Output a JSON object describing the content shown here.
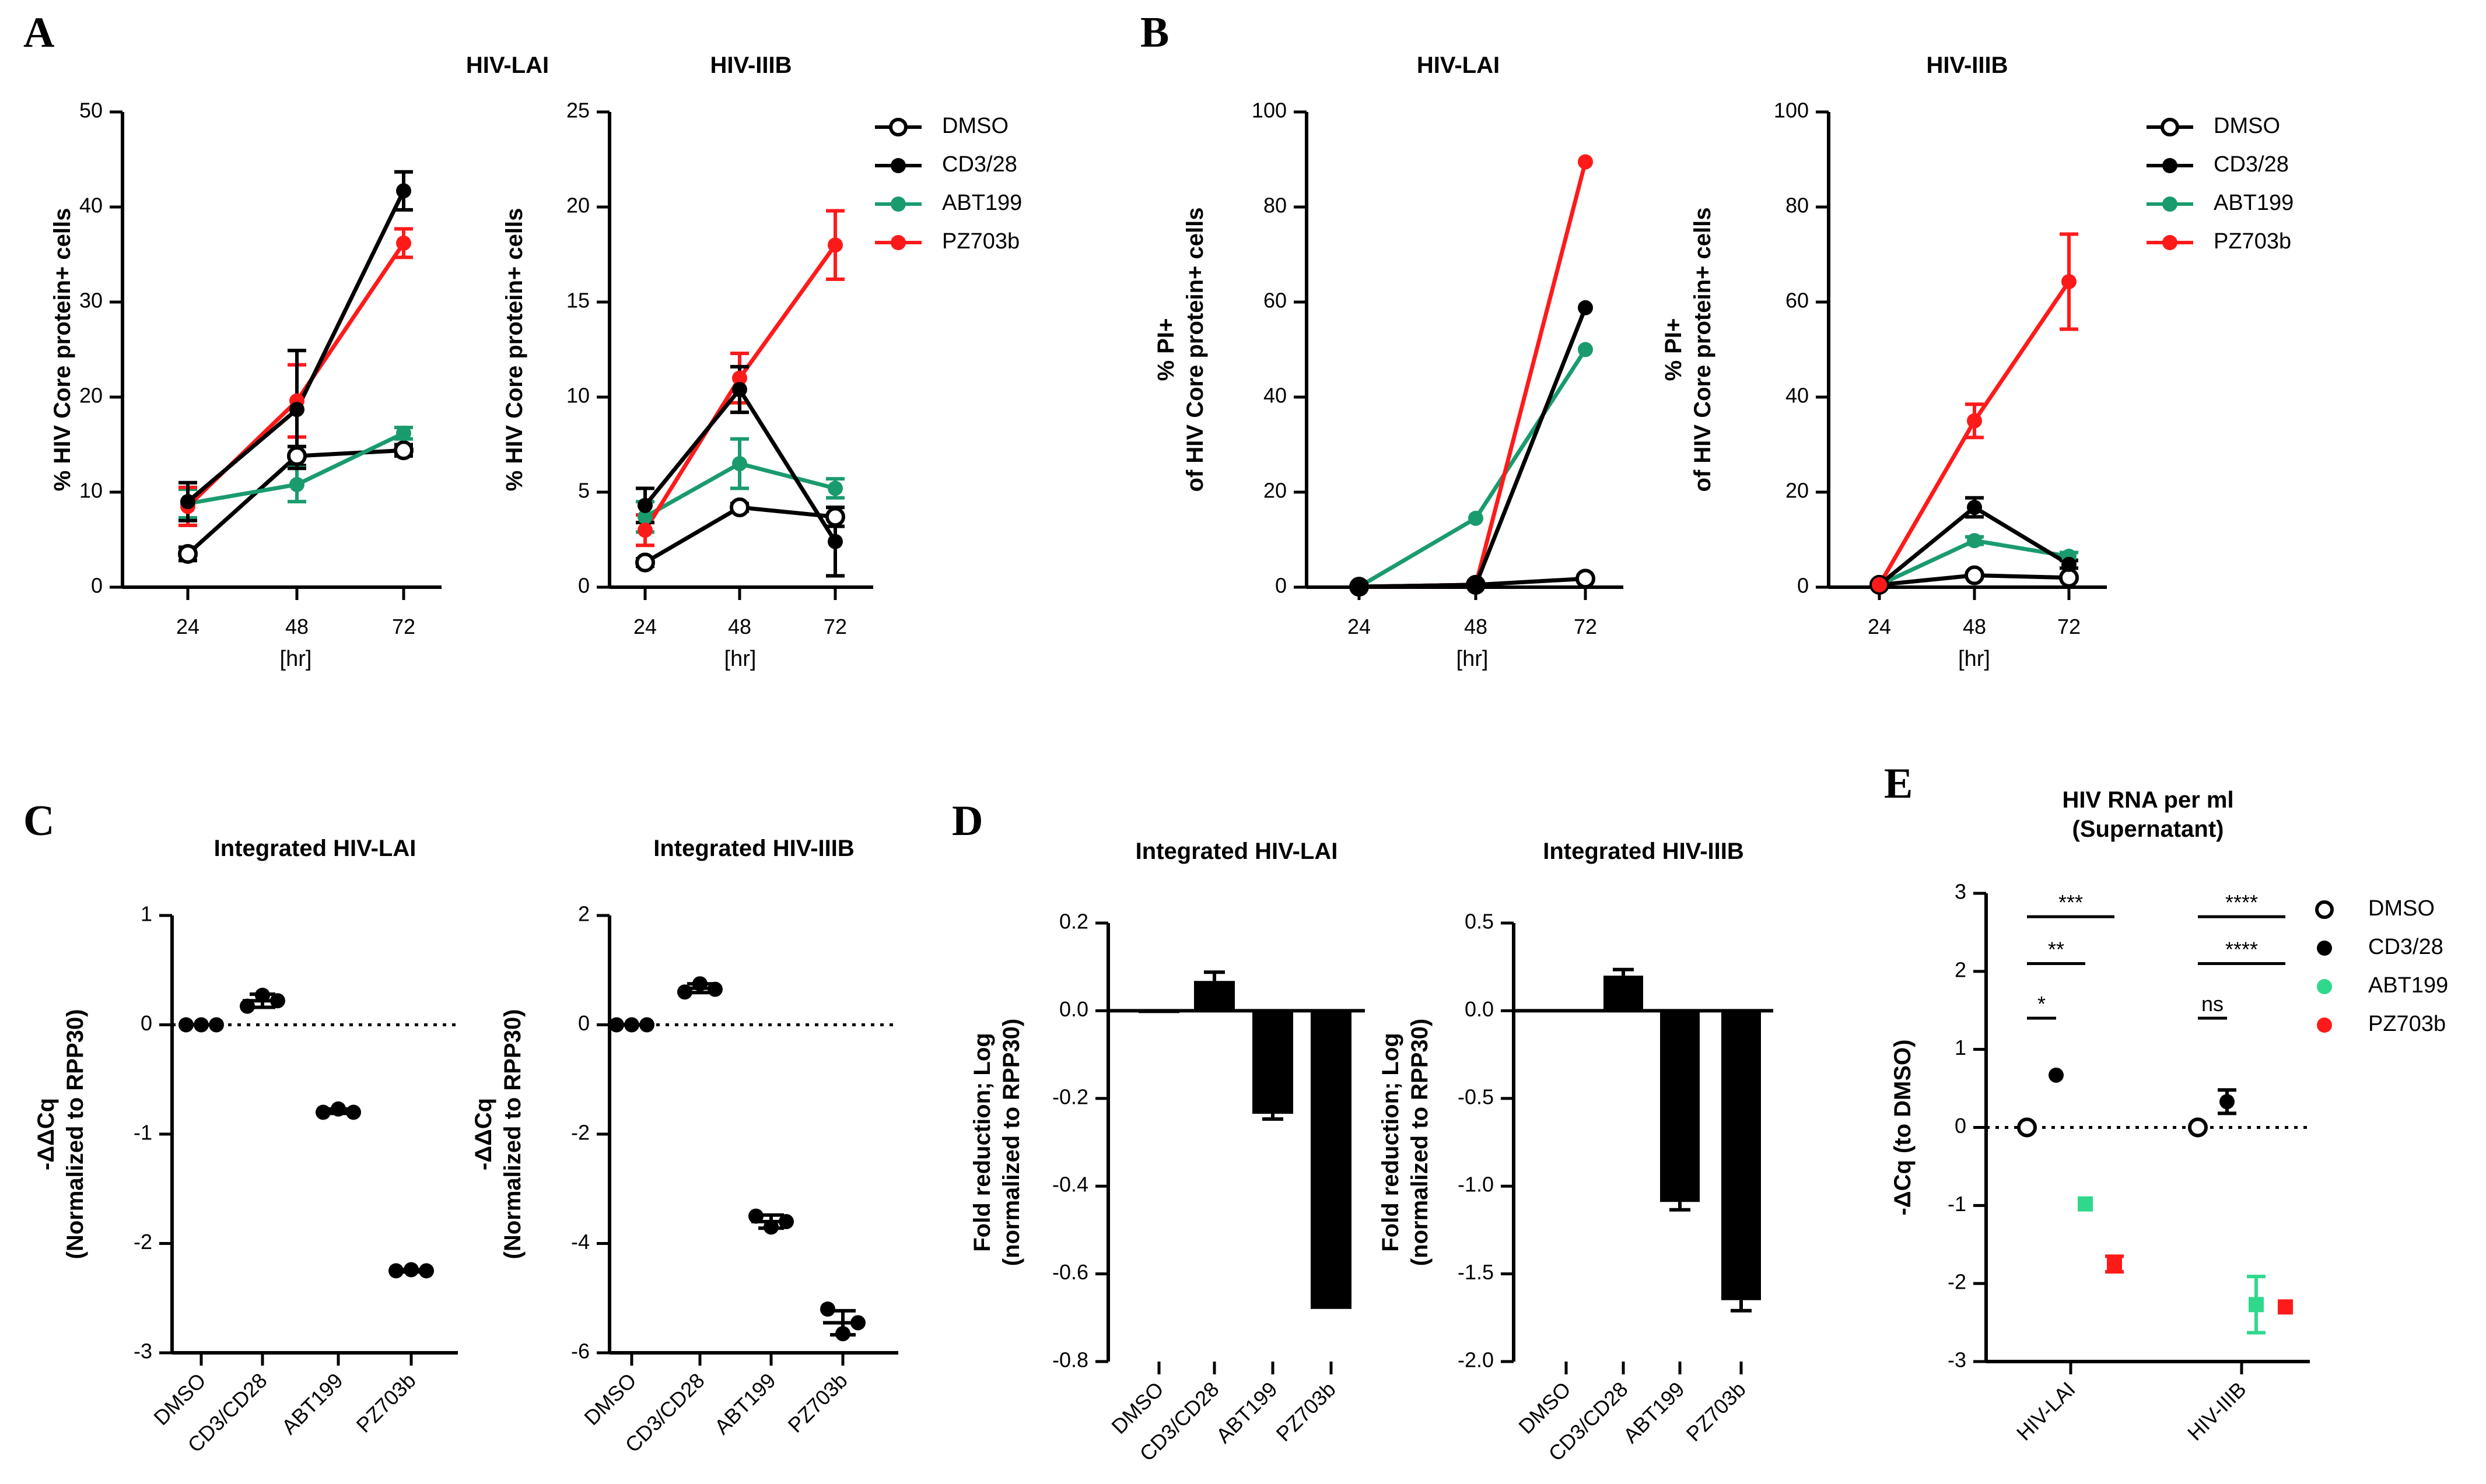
{
  "figure": {
    "colors": {
      "DMSO": "#000000",
      "CD3/28": "#000000",
      "ABT199": "#1a9b6e",
      "PZ703b": "#ff1a1a",
      "ABT199_E": "#2fd98b"
    },
    "panel_letters": {
      "A": "A",
      "B": "B",
      "C": "C",
      "D": "D",
      "E": "E"
    }
  },
  "chart_data": [
    {
      "id": "A1",
      "type": "line",
      "title": "HIV-LAI",
      "xlabel": "[hr]",
      "ylabel": "% HIV Core protein+ cells",
      "categories": [
        "24",
        "48",
        "72"
      ],
      "ylim": [
        0,
        50
      ],
      "yticks": [
        "0",
        "10",
        "20",
        "30",
        "40",
        "50"
      ],
      "series": [
        {
          "name": "DMSO",
          "values": [
            3.5,
            13.8,
            14.4
          ],
          "err": [
            0.7,
            1.0,
            0.6
          ],
          "marker": "open"
        },
        {
          "name": "ABT199",
          "values": [
            8.8,
            10.8,
            16.2
          ],
          "err": [
            1.5,
            1.8,
            0.6
          ],
          "marker": "filled"
        },
        {
          "name": "PZ703b",
          "values": [
            8.5,
            19.6,
            36.2
          ],
          "err": [
            2.0,
            3.8,
            1.5
          ],
          "marker": "filled"
        },
        {
          "name": "CD3/28",
          "values": [
            9.0,
            18.7,
            41.7
          ],
          "err": [
            2.0,
            6.2,
            2.0
          ],
          "marker": "filled"
        }
      ]
    },
    {
      "id": "A2",
      "type": "line",
      "title": "HIV-IIIB",
      "xlabel": "[hr]",
      "ylabel": "% HIV Core protein+ cells",
      "categories": [
        "24",
        "48",
        "72"
      ],
      "ylim": [
        0,
        25
      ],
      "yticks": [
        "0",
        "5",
        "10",
        "15",
        "20",
        "25"
      ],
      "legend": [
        "DMSO",
        "CD3/28",
        "ABT199",
        "PZ703b"
      ],
      "series": [
        {
          "name": "DMSO",
          "values": [
            1.3,
            4.2,
            3.7
          ],
          "err": [
            0.2,
            0.2,
            0.5
          ],
          "marker": "open"
        },
        {
          "name": "ABT199",
          "values": [
            3.7,
            6.5,
            5.2
          ],
          "err": [
            0.8,
            1.3,
            0.5
          ],
          "marker": "filled"
        },
        {
          "name": "PZ703b",
          "values": [
            3.0,
            11.0,
            18.0
          ],
          "err": [
            0.8,
            1.3,
            1.8
          ],
          "marker": "filled"
        },
        {
          "name": "CD3/28",
          "values": [
            4.3,
            10.4,
            2.4
          ],
          "err": [
            0.9,
            1.2,
            1.8
          ],
          "marker": "filled"
        }
      ]
    },
    {
      "id": "B1",
      "type": "line",
      "title": "HIV-LAI",
      "xlabel": "[hr]",
      "ylabel": [
        "% PI+",
        "of HIV Core protein+ cells"
      ],
      "categories": [
        "24",
        "48",
        "72"
      ],
      "ylim": [
        0,
        100
      ],
      "yticks": [
        "0",
        "20",
        "40",
        "60",
        "80",
        "100"
      ],
      "series": [
        {
          "name": "DMSO",
          "values": [
            0.1,
            0.5,
            1.8
          ],
          "err": [
            0,
            0,
            0
          ],
          "marker": "open"
        },
        {
          "name": "ABT199",
          "values": [
            0.1,
            14.5,
            50.0
          ],
          "err": [
            0,
            0,
            0
          ],
          "marker": "filled"
        },
        {
          "name": "PZ703b",
          "values": [
            0.1,
            0.5,
            89.5
          ],
          "err": [
            0,
            0,
            0
          ],
          "marker": "filled"
        },
        {
          "name": "CD3/28",
          "values": [
            0.1,
            0.5,
            58.8
          ],
          "err": [
            0,
            0,
            0
          ],
          "marker": "filled"
        }
      ]
    },
    {
      "id": "B2",
      "type": "line",
      "title": "HIV-IIIB",
      "xlabel": "[hr]",
      "ylabel": [
        "% PI+",
        "of HIV Core protein+ cells"
      ],
      "categories": [
        "24",
        "48",
        "72"
      ],
      "ylim": [
        0,
        100
      ],
      "yticks": [
        "0",
        "20",
        "40",
        "60",
        "80",
        "100"
      ],
      "legend": [
        "DMSO",
        "CD3/28",
        "ABT199",
        "PZ703b"
      ],
      "series": [
        {
          "name": "DMSO",
          "values": [
            0.5,
            2.5,
            2.0
          ],
          "err": [
            0,
            0,
            0
          ],
          "marker": "open"
        },
        {
          "name": "ABT199",
          "values": [
            0.5,
            9.8,
            6.5
          ],
          "err": [
            0,
            0.8,
            0.8
          ],
          "marker": "filled"
        },
        {
          "name": "CD3/28",
          "values": [
            0.5,
            16.8,
            4.8
          ],
          "err": [
            0,
            2.0,
            0.8
          ],
          "marker": "filled"
        },
        {
          "name": "PZ703b",
          "values": [
            0.5,
            35.0,
            64.3
          ],
          "err": [
            0,
            3.5,
            10.0
          ],
          "marker": "filled"
        }
      ]
    },
    {
      "id": "C1",
      "type": "scatter",
      "title": "Integrated HIV-LAI",
      "ylabel": [
        "-ΔΔCq",
        "(Normalized to RPP30)"
      ],
      "categories": [
        "DMSO",
        "CD3/CD28",
        "ABT199",
        "PZ703b"
      ],
      "ylim": [
        -3,
        1
      ],
      "yticks": [
        "-3",
        "-2",
        "-1",
        "0",
        "1"
      ],
      "points": [
        [
          0,
          0,
          0
        ],
        [
          0.17,
          0.27,
          0.22
        ],
        [
          -0.8,
          -0.77,
          -0.8
        ],
        [
          -2.25,
          -2.24,
          -2.25
        ]
      ],
      "means": [
        0,
        0.22,
        -0.79,
        -2.25
      ],
      "err": [
        0,
        0.06,
        0.02,
        0.01
      ]
    },
    {
      "id": "C2",
      "type": "scatter",
      "title": "Integrated HIV-IIIB",
      "ylabel": [
        "-ΔΔCq",
        "(Normalized to RPP30)"
      ],
      "categories": [
        "DMSO",
        "CD3/CD28",
        "ABT199",
        "PZ703b"
      ],
      "ylim": [
        -6,
        2
      ],
      "yticks": [
        "-6",
        "-4",
        "-2",
        "0",
        "2"
      ],
      "points": [
        [
          0,
          0,
          0
        ],
        [
          0.6,
          0.75,
          0.65
        ],
        [
          -3.5,
          -3.7,
          -3.6
        ],
        [
          -5.2,
          -5.65,
          -5.45
        ]
      ],
      "means": [
        0,
        0.67,
        -3.6,
        -5.45
      ],
      "err": [
        0,
        0.08,
        0.12,
        0.22
      ]
    },
    {
      "id": "D1",
      "type": "bar",
      "title": "Integrated HIV-LAI",
      "ylabel": [
        "Fold reduction; Log",
        "(normalized to RPP30)"
      ],
      "categories": [
        "DMSO",
        "CD3/CD28",
        "ABT199",
        "PZ703b"
      ],
      "ylim": [
        -0.8,
        0.2
      ],
      "yticks": [
        "-0.8",
        "-0.6",
        "-0.4",
        "-0.2",
        "0.0",
        "0.2"
      ],
      "values": [
        -0.005,
        0.068,
        -0.235,
        -0.68
      ],
      "err": [
        0,
        0.02,
        0.012,
        0
      ]
    },
    {
      "id": "D2",
      "type": "bar",
      "title": "Integrated HIV-IIIB",
      "ylabel": [
        "Fold reduction; Log",
        "(normalized to RPP30)"
      ],
      "categories": [
        "DMSO",
        "CD3/CD28",
        "ABT199",
        "PZ703b"
      ],
      "ylim": [
        -2.0,
        0.5
      ],
      "yticks": [
        "-2.0",
        "-1.5",
        "-1.0",
        "-0.5",
        "0.0",
        "0.5"
      ],
      "values": [
        0.005,
        0.2,
        -1.09,
        -1.65
      ],
      "err": [
        0,
        0.035,
        0.045,
        0.06
      ]
    },
    {
      "id": "E",
      "type": "scatter",
      "title": [
        "HIV RNA per ml",
        "(Supernatant)"
      ],
      "ylabel": "-ΔCq (to DMSO)",
      "categories": [
        "HIV-LAI",
        "HIV-IIIB"
      ],
      "ylim": [
        -3,
        3
      ],
      "yticks": [
        "-3",
        "-2",
        "-1",
        "0",
        "1",
        "2",
        "3"
      ],
      "legend": [
        "DMSO",
        "CD3/28",
        "ABT199",
        "PZ703b"
      ],
      "series": [
        {
          "name": "DMSO",
          "values": [
            0,
            0
          ],
          "err": [
            0,
            0
          ],
          "marker": "open-circle"
        },
        {
          "name": "CD3/28",
          "values": [
            0.67,
            0.33
          ],
          "err": [
            0,
            0.15
          ],
          "marker": "circle"
        },
        {
          "name": "ABT199",
          "values": [
            -0.98,
            -2.27
          ],
          "err": [
            0,
            0.36
          ],
          "marker": "square"
        },
        {
          "name": "PZ703b",
          "values": [
            -1.75,
            -2.3
          ],
          "err": [
            0.1,
            0
          ],
          "marker": "square"
        }
      ],
      "significance": [
        {
          "group": "HIV-LAI",
          "label": "***",
          "y": 2.7
        },
        {
          "group": "HIV-LAI",
          "label": "**",
          "y": 2.1
        },
        {
          "group": "HIV-LAI",
          "label": "*",
          "y": 1.4
        },
        {
          "group": "HIV-IIIB",
          "label": "****",
          "y": 2.7
        },
        {
          "group": "HIV-IIIB",
          "label": "****",
          "y": 2.1
        },
        {
          "group": "HIV-IIIB",
          "label": "ns",
          "y": 1.4
        }
      ]
    }
  ]
}
